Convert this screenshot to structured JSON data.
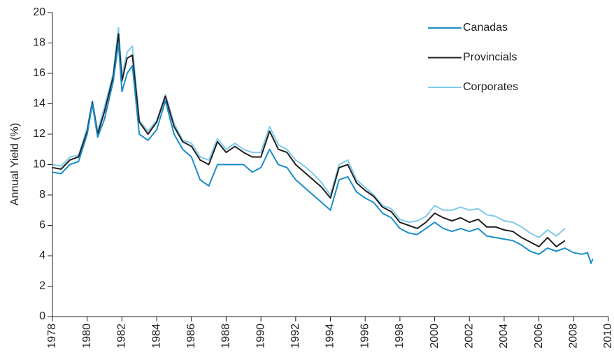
{
  "chart_data": {
    "type": "line",
    "ylabel": "Annual Yield (%)",
    "x": [
      1978,
      1978.5,
      1979,
      1979.5,
      1980,
      1980.3,
      1980.6,
      1981,
      1981.5,
      1981.8,
      1982,
      1982.3,
      1982.6,
      1983,
      1983.5,
      1984,
      1984.5,
      1985,
      1985.5,
      1986,
      1986.5,
      1987,
      1987.5,
      1988,
      1988.5,
      1989,
      1989.5,
      1990,
      1990.5,
      1991,
      1991.5,
      1992,
      1992.5,
      1993,
      1993.5,
      1994,
      1994.5,
      1995,
      1995.5,
      1996,
      1996.5,
      1997,
      1997.5,
      1998,
      1998.5,
      1999,
      1999.5,
      2000,
      2000.5,
      2001,
      2001.5,
      2002,
      2002.5,
      2003,
      2003.5,
      2004,
      2004.5,
      2005,
      2005.5,
      2006,
      2006.5,
      2007,
      2007.5,
      2008,
      2008.5,
      2008.8,
      2009,
      2009.1
    ],
    "series": [
      {
        "name": "Canadas",
        "color": "#1a8ec8",
        "values": [
          9.5,
          9.4,
          10.0,
          10.2,
          12.0,
          14.0,
          11.8,
          13.0,
          15.5,
          18.0,
          14.8,
          16.0,
          16.5,
          12.0,
          11.6,
          12.3,
          14.2,
          12.0,
          11.0,
          10.5,
          9.0,
          8.6,
          10.0,
          10.0,
          10.0,
          10.0,
          9.5,
          9.8,
          11.0,
          10.0,
          9.8,
          9.0,
          8.5,
          8.0,
          7.5,
          7.0,
          9.0,
          9.2,
          8.2,
          7.8,
          7.5,
          6.8,
          6.5,
          5.8,
          5.5,
          5.4,
          5.8,
          6.2,
          5.8,
          5.6,
          5.8,
          5.6,
          5.8,
          5.3,
          5.2,
          5.1,
          5.0,
          4.7,
          4.3,
          4.1,
          4.5,
          4.3,
          4.5,
          4.2,
          4.1,
          4.2,
          3.5,
          3.8
        ]
      },
      {
        "name": "Provincials",
        "color": "#231f20",
        "values": [
          9.8,
          9.7,
          10.3,
          10.5,
          12.2,
          14.1,
          12.0,
          13.5,
          15.8,
          18.6,
          15.5,
          17.0,
          17.2,
          12.8,
          12.0,
          12.8,
          14.5,
          12.5,
          11.5,
          11.2,
          10.3,
          10.0,
          11.5,
          10.8,
          11.2,
          10.8,
          10.5,
          10.5,
          12.2,
          11.0,
          10.8,
          10.0,
          9.5,
          9.0,
          8.5,
          7.8,
          9.8,
          10.0,
          8.8,
          8.3,
          7.9,
          7.2,
          6.9,
          6.2,
          6.0,
          5.8,
          6.2,
          6.8,
          6.5,
          6.3,
          6.5,
          6.2,
          6.4,
          5.9,
          5.9,
          5.7,
          5.6,
          5.2,
          4.9,
          4.6,
          5.2,
          4.6,
          5.0,
          null,
          null,
          null,
          null,
          null
        ]
      },
      {
        "name": "Corporates",
        "color": "#7ecbea",
        "values": [
          10.0,
          9.9,
          10.5,
          10.6,
          12.4,
          14.2,
          12.2,
          13.8,
          16.0,
          19.0,
          15.8,
          17.4,
          17.8,
          12.9,
          12.2,
          12.9,
          14.6,
          12.7,
          11.6,
          11.4,
          10.5,
          10.3,
          11.7,
          11.0,
          11.4,
          11.0,
          10.8,
          10.8,
          12.5,
          11.3,
          11.0,
          10.3,
          9.9,
          9.4,
          8.8,
          8.0,
          10.0,
          10.3,
          9.0,
          8.5,
          8.0,
          7.3,
          7.1,
          6.4,
          6.2,
          6.3,
          6.6,
          7.3,
          7.0,
          7.0,
          7.2,
          7.0,
          7.1,
          6.7,
          6.6,
          6.3,
          6.2,
          5.9,
          5.5,
          5.2,
          5.7,
          5.3,
          5.8,
          null,
          null,
          null,
          null,
          null
        ]
      }
    ],
    "xlim": [
      1978,
      2010
    ],
    "xticks": [
      1978,
      1980,
      1982,
      1984,
      1986,
      1988,
      1990,
      1992,
      1994,
      1996,
      1998,
      2000,
      2002,
      2004,
      2006,
      2008,
      2010
    ],
    "ylim": [
      0,
      20
    ],
    "yticks": [
      0,
      2,
      4,
      6,
      8,
      10,
      12,
      14,
      16,
      18,
      20
    ],
    "legend": "upper right"
  }
}
